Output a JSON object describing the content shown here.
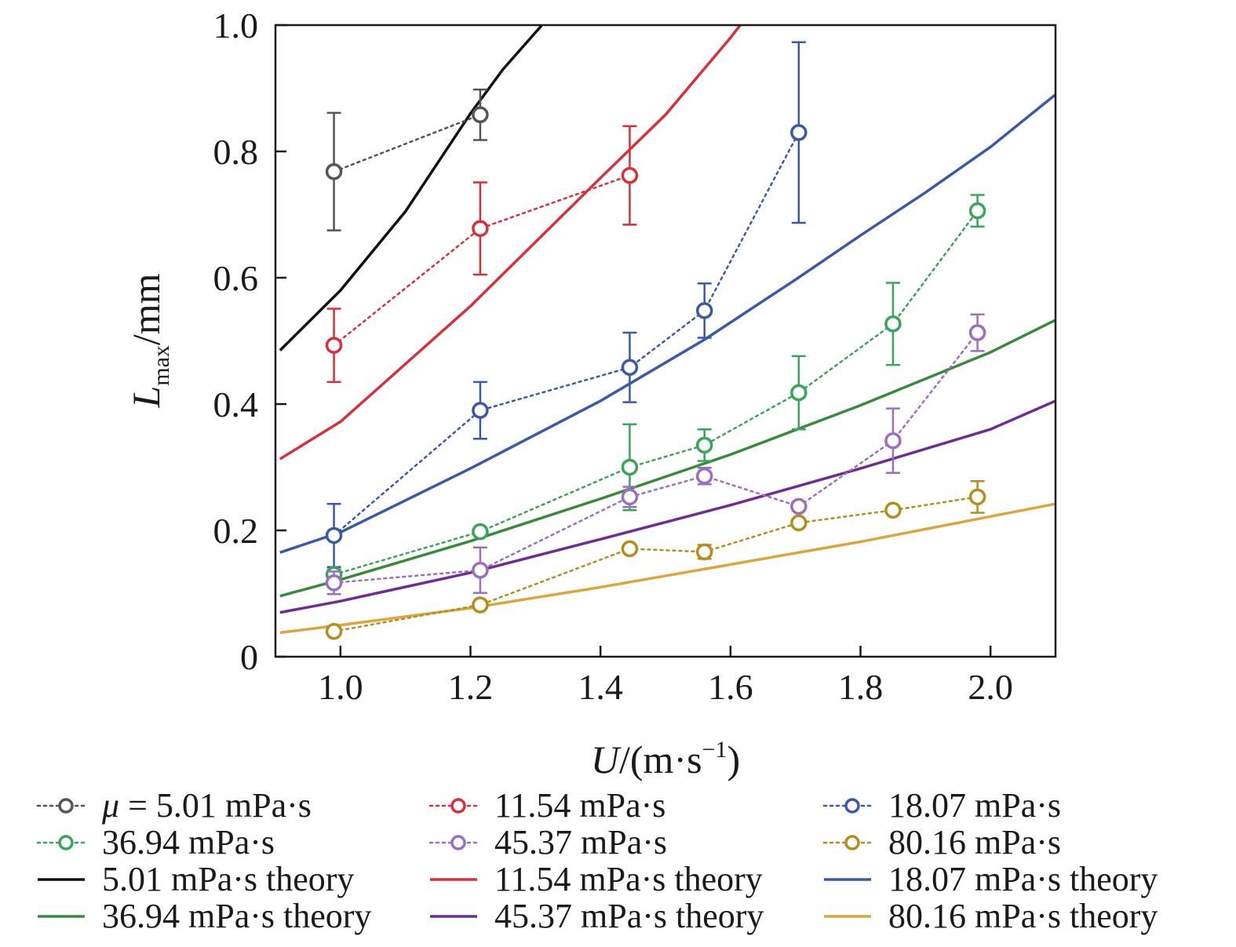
{
  "chart_data": {
    "type": "line",
    "xlabel": {
      "main": "U",
      "unit": "/(m·s",
      "sup": "−1",
      "close": ")"
    },
    "ylabel": {
      "main": "L",
      "sub": "max",
      "unit": "/mm"
    },
    "xlim": [
      0.9,
      2.1
    ],
    "ylim": [
      0,
      1.0
    ],
    "x_ticks": [
      1.0,
      1.2,
      1.4,
      1.6,
      1.8,
      2.0
    ],
    "x_tick_labels": [
      "1.0",
      "1.2",
      "1.4",
      "1.6",
      "1.8",
      "2.0"
    ],
    "y_ticks": [
      0,
      0.2,
      0.4,
      0.6,
      0.8,
      1.0
    ],
    "y_tick_labels": [
      "0",
      "0.2",
      "0.4",
      "0.6",
      "0.8",
      "1.0"
    ],
    "grid": false,
    "legend_position": "bottom",
    "experiments": [
      {
        "name": "μ = 5.01 mPa·s",
        "color": "#555555",
        "points": [
          {
            "x": 0.99,
            "y": 0.768,
            "err": 0.093
          },
          {
            "x": 1.215,
            "y": 0.858,
            "err": 0.04
          }
        ]
      },
      {
        "name": "11.54 mPa·s",
        "color": "#d6313a",
        "points": [
          {
            "x": 0.99,
            "y": 0.493,
            "err": 0.058
          },
          {
            "x": 1.215,
            "y": 0.678,
            "err": 0.073
          },
          {
            "x": 1.445,
            "y": 0.762,
            "err": 0.078
          }
        ]
      },
      {
        "name": "18.07 mPa·s",
        "color": "#3b5aa6",
        "points": [
          {
            "x": 0.99,
            "y": 0.192,
            "err": 0.05
          },
          {
            "x": 1.215,
            "y": 0.39,
            "err": 0.045
          },
          {
            "x": 1.445,
            "y": 0.458,
            "err": 0.055
          },
          {
            "x": 1.56,
            "y": 0.548,
            "err": 0.043
          },
          {
            "x": 1.705,
            "y": 0.83,
            "err": 0.143
          }
        ]
      },
      {
        "name": "36.94 mPa·s",
        "color": "#3aa45a",
        "points": [
          {
            "x": 0.99,
            "y": 0.13,
            "err": 0.008
          },
          {
            "x": 1.215,
            "y": 0.198,
            "err": 0.006
          },
          {
            "x": 1.445,
            "y": 0.3,
            "err": 0.068
          },
          {
            "x": 1.56,
            "y": 0.335,
            "err": 0.025
          },
          {
            "x": 1.705,
            "y": 0.418,
            "err": 0.058
          },
          {
            "x": 1.85,
            "y": 0.527,
            "err": 0.065
          },
          {
            "x": 1.98,
            "y": 0.706,
            "err": 0.025
          }
        ]
      },
      {
        "name": "45.37 mPa·s",
        "color": "#9a6fc0",
        "points": [
          {
            "x": 0.99,
            "y": 0.117,
            "err": 0.018
          },
          {
            "x": 1.215,
            "y": 0.137,
            "err": 0.036
          },
          {
            "x": 1.445,
            "y": 0.253,
            "err": 0.016
          },
          {
            "x": 1.56,
            "y": 0.286,
            "err": 0.013
          },
          {
            "x": 1.705,
            "y": 0.238,
            "err": 0.006
          },
          {
            "x": 1.85,
            "y": 0.342,
            "err": 0.051
          },
          {
            "x": 1.98,
            "y": 0.513,
            "err": 0.029
          }
        ]
      },
      {
        "name": "80.16 mPa·s",
        "color": "#b48d1e",
        "points": [
          {
            "x": 0.99,
            "y": 0.04,
            "err": 0.0
          },
          {
            "x": 1.215,
            "y": 0.082,
            "err": 0.004
          },
          {
            "x": 1.445,
            "y": 0.171,
            "err": 0.004
          },
          {
            "x": 1.56,
            "y": 0.166,
            "err": 0.011
          },
          {
            "x": 1.705,
            "y": 0.212,
            "err": 0.006
          },
          {
            "x": 1.85,
            "y": 0.232,
            "err": 0.004
          },
          {
            "x": 1.98,
            "y": 0.253,
            "err": 0.025
          }
        ]
      }
    ],
    "theory": [
      {
        "name": "5.01 mPa·s theory",
        "color": "#111111",
        "x": [
          0.907,
          1.0,
          1.1,
          1.2,
          1.25,
          1.31
        ],
        "y": [
          0.485,
          0.58,
          0.705,
          0.86,
          0.93,
          1.0
        ]
      },
      {
        "name": "11.54 mPa·s theory",
        "color": "#d6313a",
        "x": [
          0.907,
          1.0,
          1.2,
          1.4,
          1.5,
          1.6,
          1.615
        ],
        "y": [
          0.313,
          0.372,
          0.555,
          0.758,
          0.858,
          0.98,
          1.0
        ]
      },
      {
        "name": "18.07 mPa·s theory",
        "color": "#3b5aa6",
        "x": [
          0.907,
          1.0,
          1.2,
          1.4,
          1.56,
          1.7,
          1.8,
          1.9,
          2.0,
          2.1
        ],
        "y": [
          0.165,
          0.197,
          0.298,
          0.405,
          0.502,
          0.597,
          0.667,
          0.735,
          0.807,
          0.89
        ]
      },
      {
        "name": "36.94 mPa·s theory",
        "color": "#3a8a3e",
        "x": [
          0.907,
          1.0,
          1.2,
          1.4,
          1.6,
          1.8,
          2.0,
          2.1
        ],
        "y": [
          0.096,
          0.122,
          0.183,
          0.25,
          0.32,
          0.398,
          0.482,
          0.533
        ]
      },
      {
        "name": "45.37 mPa·s theory",
        "color": "#6f2c91",
        "x": [
          0.907,
          1.0,
          1.2,
          1.4,
          1.6,
          1.8,
          2.0,
          2.1
        ],
        "y": [
          0.07,
          0.088,
          0.133,
          0.186,
          0.24,
          0.298,
          0.36,
          0.405
        ]
      },
      {
        "name": "80.16 mPa·s theory",
        "color": "#d9a640",
        "x": [
          0.907,
          1.0,
          1.2,
          1.4,
          1.6,
          1.8,
          2.0,
          2.1
        ],
        "y": [
          0.038,
          0.05,
          0.077,
          0.11,
          0.146,
          0.182,
          0.222,
          0.242
        ]
      }
    ],
    "legend": [
      {
        "label": "μ = 5.01 mPa·s",
        "style": "marker",
        "color": "#555555"
      },
      {
        "label": "11.54 mPa·s",
        "style": "marker",
        "color": "#d6313a"
      },
      {
        "label": "18.07 mPa·s",
        "style": "marker",
        "color": "#3b5aa6"
      },
      {
        "label": "36.94 mPa·s",
        "style": "marker",
        "color": "#3aa45a"
      },
      {
        "label": "45.37 mPa·s",
        "style": "marker",
        "color": "#9a6fc0"
      },
      {
        "label": "80.16 mPa·s",
        "style": "marker",
        "color": "#b48d1e"
      },
      {
        "label": "5.01 mPa·s theory",
        "style": "line",
        "color": "#111111"
      },
      {
        "label": "11.54 mPa·s theory",
        "style": "line",
        "color": "#d6313a"
      },
      {
        "label": "18.07 mPa·s theory",
        "style": "line",
        "color": "#3b5aa6"
      },
      {
        "label": "36.94 mPa·s theory",
        "style": "line",
        "color": "#3a8a3e"
      },
      {
        "label": "45.37 mPa·s theory",
        "style": "line",
        "color": "#6f2c91"
      },
      {
        "label": "80.16 mPa·s theory",
        "style": "line",
        "color": "#d9a640"
      }
    ]
  }
}
